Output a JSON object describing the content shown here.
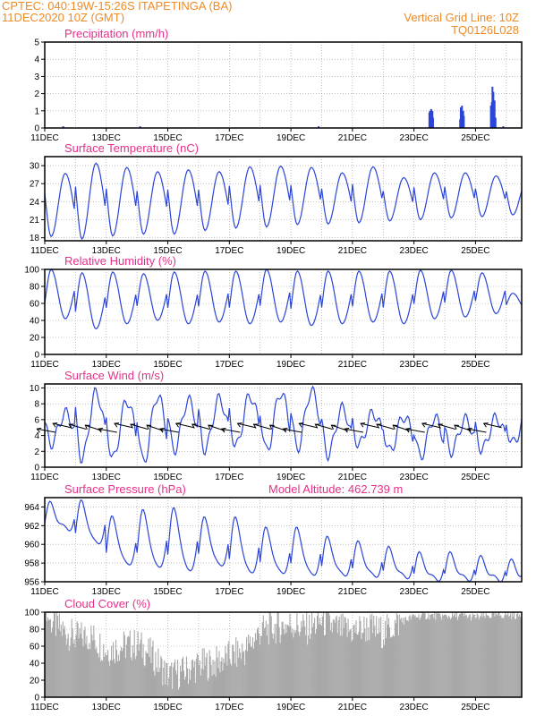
{
  "header": {
    "line1": "CPTEC:   040:19W-15:26S   ITAPETINGA (BA)",
    "line2": "11DEC2020  10Z (GMT)",
    "vertical_grid": "Vertical Grid Line: 10Z",
    "code": "TQ0126L028",
    "model_altitude": "Model Altitude:  462.739  m"
  },
  "colors": {
    "line": "#2b45d8",
    "title": "#e8308a",
    "header": "#f08a24",
    "cloud": "#a8a8a8"
  },
  "date_labels": [
    "11DEC",
    "13DEC",
    "15DEC",
    "17DEC",
    "19DEC",
    "21DEC",
    "23DEC",
    "25DEC"
  ],
  "chart_data": [
    {
      "type": "bar",
      "title": "Precipitation  (mm/h)",
      "ylim": [
        0,
        5
      ],
      "yticks": [
        0,
        1,
        2,
        3,
        4,
        5
      ],
      "x_unit": "days since 11DEC 10Z",
      "x": [
        12.5,
        12.52,
        12.56,
        12.6,
        12.62,
        13.5,
        13.52,
        13.56,
        13.6,
        13.62,
        14.5,
        14.53,
        14.55,
        14.58,
        14.62,
        14.65
      ],
      "values": [
        0.9,
        1.0,
        1.1,
        1.0,
        0.6,
        0.5,
        1.2,
        1.3,
        1.0,
        0.7,
        1.3,
        1.5,
        2.4,
        2.1,
        1.6,
        0.6
      ]
    },
    {
      "type": "line",
      "title": "Surface Temperature (nC)",
      "ylim": [
        17.5,
        31.5
      ],
      "yticks": [
        18,
        21,
        24,
        27,
        30
      ],
      "mins": [
        18.2,
        17.8,
        18.3,
        18.6,
        18.6,
        19.2,
        19.6,
        19.8,
        20.2,
        20.3,
        20.5,
        20.8,
        21.0,
        21.3,
        21.5,
        21.8
      ],
      "maxs": [
        28.7,
        30.4,
        29.7,
        29.0,
        29.3,
        29.0,
        29.8,
        29.9,
        29.7,
        28.8,
        29.8,
        28.0,
        28.8,
        28.8,
        28.3,
        27.5
      ]
    },
    {
      "type": "line",
      "title": "Relative Humidity (%)",
      "ylim": [
        0,
        100
      ],
      "yticks": [
        0,
        20,
        40,
        60,
        80,
        100
      ],
      "mins": [
        42,
        30,
        36,
        40,
        36,
        38,
        36,
        38,
        34,
        36,
        38,
        36,
        42,
        44,
        48,
        52
      ],
      "maxs": [
        100,
        96,
        97,
        95,
        97,
        98,
        98,
        100,
        98,
        98,
        98,
        98,
        99,
        99,
        96,
        72
      ]
    },
    {
      "type": "line",
      "title": "Surface Wind (m/s)",
      "ylim": [
        0,
        10.5
      ],
      "yticks": [
        0,
        2,
        4,
        6,
        8,
        10
      ],
      "mins": [
        3.0,
        1.0,
        1.0,
        0.6,
        2.2,
        2.2,
        2.6,
        2.0,
        2.4,
        1.6,
        2.8,
        2.0,
        1.4,
        2.0,
        2.2,
        3.0
      ],
      "maxs": [
        6.8,
        9.4,
        8.4,
        9.0,
        8.4,
        8.6,
        9.0,
        9.4,
        9.6,
        7.4,
        6.8,
        6.4,
        6.2,
        6.0,
        6.2,
        6.5
      ]
    },
    {
      "type": "line",
      "title": "Surface Pressure (hPa)",
      "ylim": [
        956,
        965
      ],
      "yticks": [
        956,
        958,
        960,
        962,
        964
      ],
      "mins": [
        961.4,
        959.8,
        957.5,
        957.2,
        956.8,
        957.4,
        956.6,
        956.6,
        956.4,
        956.4,
        956.3,
        956.2,
        956.0,
        956.0,
        956.0,
        956.0
      ],
      "maxs": [
        964.2,
        964.4,
        962.7,
        963.4,
        963.6,
        962.6,
        962.6,
        961.5,
        961.5,
        960.5,
        960.0,
        959.4,
        958.8,
        958.8,
        958.4,
        958.0
      ]
    },
    {
      "type": "area",
      "title": "Cloud Cover (%)",
      "ylim": [
        0,
        100
      ],
      "yticks": [
        0,
        20,
        40,
        60,
        80,
        100
      ],
      "x_days": [
        0,
        0.5,
        1,
        1.5,
        2,
        2.5,
        3,
        3.5,
        4,
        4.5,
        5,
        5.5,
        6,
        6.5,
        7,
        7.5,
        8,
        8.5,
        9,
        9.5,
        10,
        10.5,
        11,
        11.5,
        12,
        12.5,
        13,
        13.5,
        14,
        14.5,
        15,
        15.5
      ],
      "values": [
        96,
        80,
        70,
        72,
        55,
        60,
        62,
        48,
        25,
        30,
        38,
        40,
        48,
        55,
        78,
        82,
        86,
        80,
        90,
        80,
        78,
        82,
        76,
        88,
        95,
        96,
        95,
        96,
        94,
        96,
        97,
        96
      ]
    }
  ]
}
